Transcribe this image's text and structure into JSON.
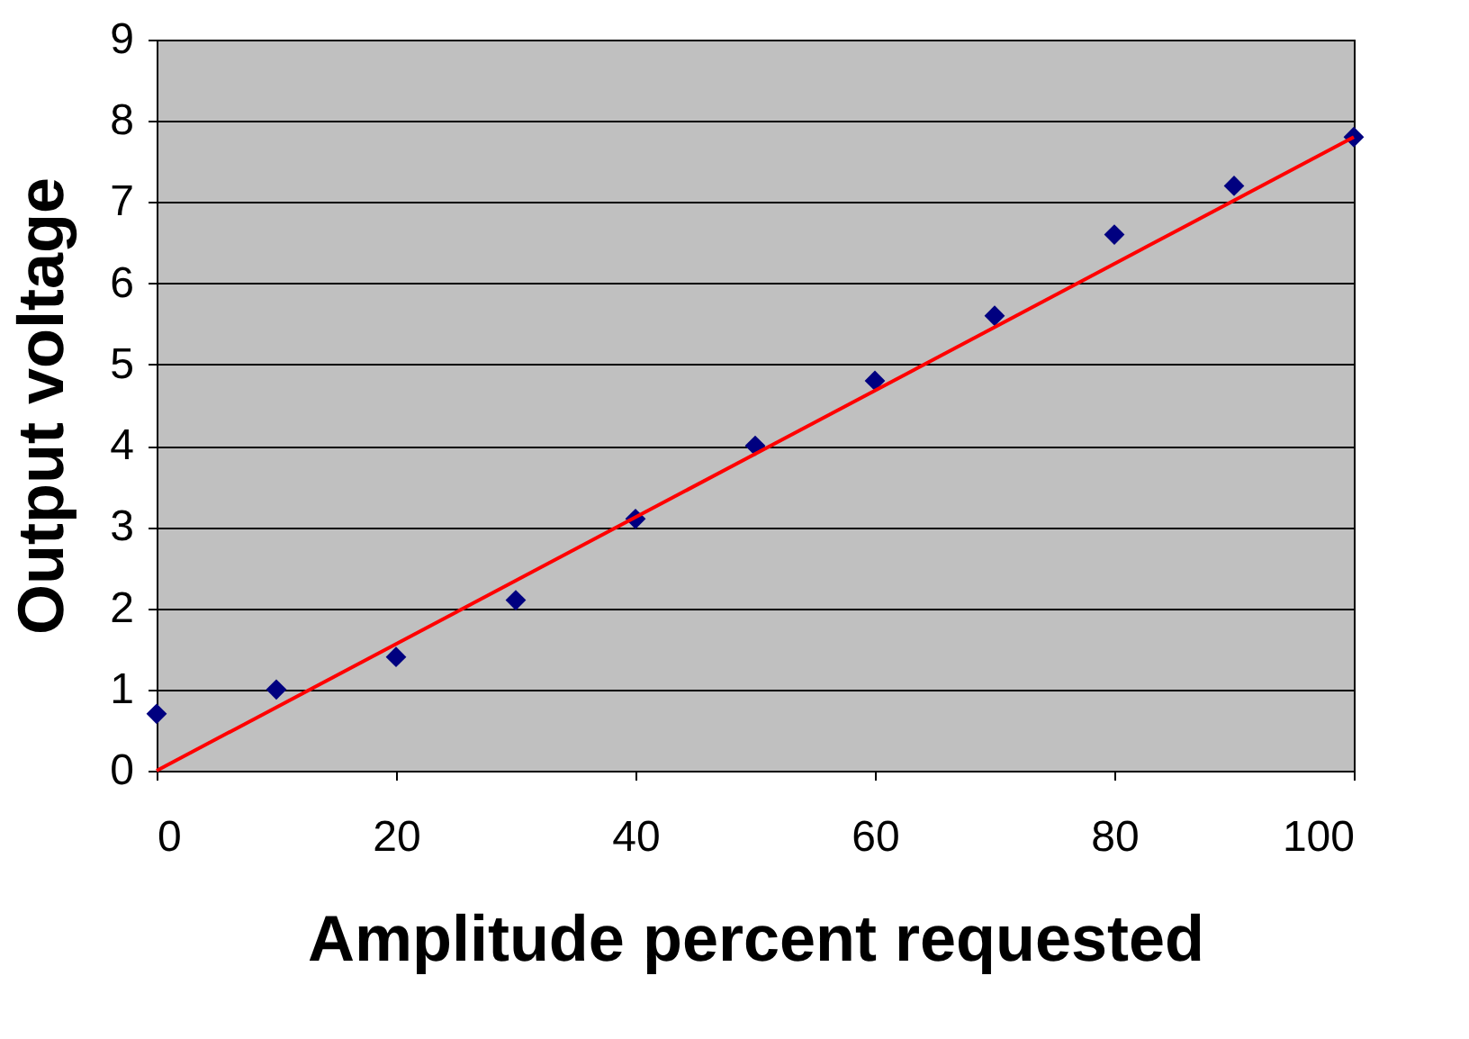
{
  "chart_data": {
    "type": "scatter",
    "xlabel": "Amplitude percent requested",
    "ylabel": "Output voltage",
    "x": [
      0,
      10,
      20,
      30,
      40,
      50,
      60,
      70,
      80,
      90,
      100
    ],
    "series": [
      {
        "color": "#000080",
        "marker": "diamond",
        "values": [
          0.7,
          1.0,
          1.4,
          2.1,
          3.1,
          4.0,
          4.8,
          5.6,
          6.6,
          7.2,
          7.8
        ]
      },
      {
        "type": "line",
        "color": "#ff0000",
        "x": [
          0,
          100
        ],
        "values": [
          0,
          7.8
        ],
        "line_style": "solid"
      }
    ],
    "xlim": [
      0,
      100
    ],
    "xticks": [
      0,
      20,
      40,
      60,
      80,
      100
    ],
    "ylim": [
      0,
      9
    ],
    "yticks": [
      0,
      1,
      2,
      3,
      4,
      5,
      6,
      7,
      8,
      9
    ],
    "grid": "y"
  }
}
